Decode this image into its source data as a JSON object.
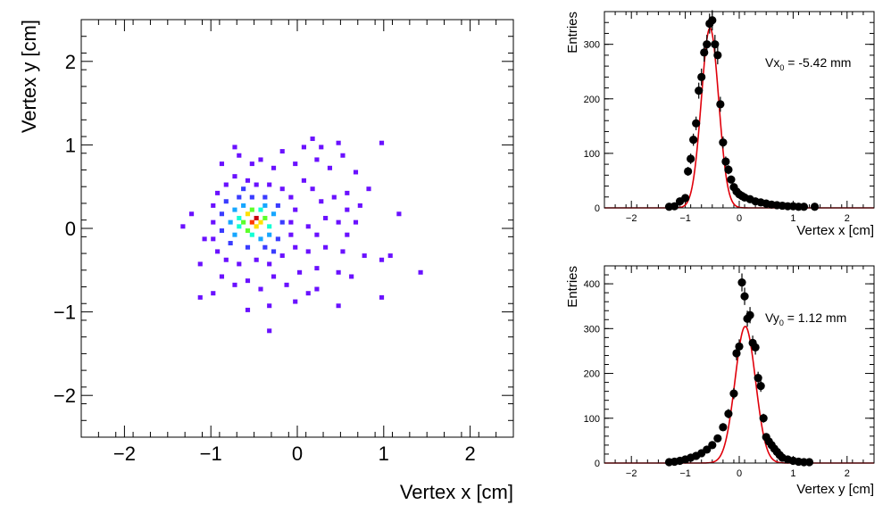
{
  "colors": {
    "frame": "#000000",
    "fit": "#e0000b",
    "points": "#000000",
    "palette": [
      "#6a11ff",
      "#3a3cff",
      "#16a6ff",
      "#12ffd4",
      "#5cff2a",
      "#ffe000",
      "#ff3a00",
      "#c8000e"
    ]
  },
  "chart_data": [
    {
      "type": "heatmap",
      "xlabel": "Vertex x [cm]",
      "ylabel": "Vertex y [cm]",
      "xlim": [
        -2.5,
        2.5
      ],
      "ylim": [
        -2.5,
        2.5
      ],
      "x_ticks": [
        "−2",
        "−1",
        "0",
        "1",
        "2"
      ],
      "y_ticks": [
        "−2",
        "−1",
        "0",
        "1",
        "2"
      ],
      "x_tick_values": [
        -2,
        -1,
        0,
        1,
        2
      ],
      "y_tick_values": [
        -2,
        -1,
        0,
        1,
        2
      ],
      "bin_width": 0.05,
      "bins": [
        [
          -0.5,
          0.1,
          8
        ],
        [
          -0.55,
          0.05,
          7
        ],
        [
          -0.45,
          0.05,
          6
        ],
        [
          -0.6,
          0.15,
          6
        ],
        [
          -0.5,
          0.0,
          6
        ],
        [
          -0.65,
          0.05,
          5
        ],
        [
          -0.55,
          0.2,
          5
        ],
        [
          -0.4,
          0.1,
          5
        ],
        [
          -0.6,
          -0.05,
          5
        ],
        [
          -0.7,
          0.1,
          4
        ],
        [
          -0.45,
          0.2,
          4
        ],
        [
          -0.7,
          0.0,
          4
        ],
        [
          -0.35,
          0.0,
          4
        ],
        [
          -0.55,
          -0.1,
          4
        ],
        [
          -0.75,
          0.2,
          3
        ],
        [
          -0.65,
          0.25,
          3
        ],
        [
          -0.4,
          0.25,
          3
        ],
        [
          -0.8,
          0.05,
          3
        ],
        [
          -0.3,
          0.15,
          3
        ],
        [
          -0.75,
          -0.1,
          3
        ],
        [
          -0.45,
          -0.15,
          3
        ],
        [
          -0.35,
          -0.1,
          3
        ],
        [
          -0.85,
          0.3,
          2
        ],
        [
          -0.7,
          0.35,
          2
        ],
        [
          -0.55,
          0.35,
          2
        ],
        [
          -0.4,
          0.35,
          2
        ],
        [
          -0.9,
          0.15,
          2
        ],
        [
          -0.25,
          0.25,
          2
        ],
        [
          -0.9,
          -0.05,
          2
        ],
        [
          -0.2,
          0.05,
          2
        ],
        [
          -0.8,
          -0.2,
          2
        ],
        [
          -0.6,
          -0.25,
          2
        ],
        [
          -0.4,
          -0.25,
          2
        ],
        [
          -0.25,
          -0.15,
          2
        ],
        [
          -0.65,
          0.45,
          2
        ],
        [
          -0.3,
          -0.3,
          2
        ],
        [
          -0.85,
          0.5,
          1
        ],
        [
          -0.75,
          0.6,
          1
        ],
        [
          -0.6,
          0.55,
          1
        ],
        [
          -0.5,
          0.5,
          1
        ],
        [
          -0.35,
          0.5,
          1
        ],
        [
          -0.2,
          0.45,
          1
        ],
        [
          -0.1,
          0.35,
          1
        ],
        [
          -0.05,
          0.2,
          1
        ],
        [
          -0.1,
          0.05,
          1
        ],
        [
          -0.95,
          0.4,
          1
        ],
        [
          -1.0,
          0.25,
          1
        ],
        [
          -1.0,
          0.05,
          1
        ],
        [
          -1.0,
          -0.15,
          1
        ],
        [
          -0.95,
          -0.3,
          1
        ],
        [
          -0.85,
          -0.4,
          1
        ],
        [
          -0.7,
          -0.45,
          1
        ],
        [
          -0.5,
          -0.4,
          1
        ],
        [
          -0.35,
          -0.45,
          1
        ],
        [
          -0.2,
          -0.35,
          1
        ],
        [
          -0.05,
          -0.25,
          1
        ],
        [
          -0.1,
          -0.1,
          1
        ],
        [
          -0.9,
          0.75,
          1
        ],
        [
          -0.75,
          0.95,
          1
        ],
        [
          -0.7,
          0.85,
          1
        ],
        [
          -0.45,
          0.8,
          1
        ],
        [
          -0.3,
          0.7,
          1
        ],
        [
          -0.2,
          0.9,
          1
        ],
        [
          -0.05,
          0.75,
          1
        ],
        [
          0.05,
          0.95,
          1
        ],
        [
          0.2,
          0.8,
          1
        ],
        [
          0.25,
          0.95,
          1
        ],
        [
          0.35,
          0.7,
          1
        ],
        [
          0.5,
          0.85,
          1
        ],
        [
          0.45,
          1.0,
          1
        ],
        [
          0.65,
          0.65,
          1
        ],
        [
          0.95,
          1.0,
          1
        ],
        [
          0.05,
          0.55,
          1
        ],
        [
          0.15,
          0.45,
          1
        ],
        [
          0.25,
          0.3,
          1
        ],
        [
          0.4,
          0.35,
          1
        ],
        [
          0.55,
          0.4,
          1
        ],
        [
          0.7,
          0.25,
          1
        ],
        [
          0.8,
          0.45,
          1
        ],
        [
          1.15,
          0.15,
          1
        ],
        [
          0.3,
          0.1,
          1
        ],
        [
          0.45,
          0.05,
          1
        ],
        [
          0.1,
          0.0,
          1
        ],
        [
          0.2,
          -0.1,
          1
        ],
        [
          0.55,
          -0.1,
          1
        ],
        [
          0.65,
          0.05,
          1
        ],
        [
          0.1,
          -0.3,
          1
        ],
        [
          0.3,
          -0.25,
          1
        ],
        [
          0.5,
          -0.3,
          1
        ],
        [
          0.75,
          -0.35,
          1
        ],
        [
          0.95,
          -0.4,
          1
        ],
        [
          1.05,
          -0.35,
          1
        ],
        [
          1.4,
          -0.55,
          1
        ],
        [
          0.2,
          -0.5,
          1
        ],
        [
          0.45,
          -0.55,
          1
        ],
        [
          0.6,
          -0.6,
          1
        ],
        [
          -0.9,
          -0.6,
          1
        ],
        [
          -0.75,
          -0.7,
          1
        ],
        [
          -0.6,
          -0.65,
          1
        ],
        [
          -0.45,
          -0.75,
          1
        ],
        [
          -0.3,
          -0.6,
          1
        ],
        [
          -0.15,
          -0.7,
          1
        ],
        [
          0.0,
          -0.55,
          1
        ],
        [
          0.1,
          -0.8,
          1
        ],
        [
          0.2,
          -0.75,
          1
        ],
        [
          -0.05,
          -0.9,
          1
        ],
        [
          0.45,
          -0.95,
          1
        ],
        [
          0.95,
          -0.85,
          1
        ],
        [
          -1.15,
          -0.85,
          1
        ],
        [
          -1.0,
          -0.8,
          1
        ],
        [
          -1.15,
          -0.45,
          1
        ],
        [
          -1.35,
          0.0,
          1
        ],
        [
          -1.25,
          0.15,
          1
        ],
        [
          -1.1,
          -0.15,
          1
        ],
        [
          -0.6,
          -1.0,
          1
        ],
        [
          -0.35,
          -0.95,
          1
        ],
        [
          -0.35,
          -1.25,
          1
        ],
        [
          0.15,
          1.05,
          1
        ],
        [
          -0.55,
          0.75,
          1
        ],
        [
          0.55,
          0.2,
          1
        ]
      ]
    },
    {
      "type": "scatter",
      "xlabel": "Vertex x [cm]",
      "ylabel": "Entries",
      "xlim": [
        -2.5,
        2.5
      ],
      "ylim": [
        0,
        360
      ],
      "x_ticks": [
        "−2",
        "−1",
        "0",
        "1",
        "2"
      ],
      "y_ticks": [
        "0",
        "100",
        "200",
        "300"
      ],
      "x_tick_values": [
        -2,
        -1,
        0,
        1,
        2
      ],
      "y_tick_values": [
        0,
        100,
        200,
        300
      ],
      "annotation_main": "Vx",
      "annotation_sub": "0",
      "annotation_value": " = -5.42 mm",
      "fit": {
        "type": "gaussian",
        "mean": -0.542,
        "sigma": 0.16,
        "amplitude": 330
      },
      "x": [
        -1.3,
        -1.2,
        -1.1,
        -1.0,
        -0.95,
        -0.9,
        -0.85,
        -0.8,
        -0.75,
        -0.7,
        -0.65,
        -0.6,
        -0.55,
        -0.5,
        -0.45,
        -0.4,
        -0.35,
        -0.3,
        -0.25,
        -0.2,
        -0.15,
        -0.1,
        -0.05,
        0.0,
        0.05,
        0.1,
        0.2,
        0.3,
        0.4,
        0.5,
        0.6,
        0.7,
        0.8,
        0.9,
        1.0,
        1.1,
        1.2,
        1.4
      ],
      "y": [
        2,
        3,
        12,
        18,
        67,
        90,
        125,
        155,
        215,
        240,
        285,
        300,
        338,
        344,
        300,
        280,
        190,
        120,
        85,
        70,
        52,
        38,
        30,
        25,
        22,
        19,
        16,
        12,
        10,
        8,
        6,
        5,
        4,
        3,
        3,
        2,
        2,
        2
      ]
    },
    {
      "type": "scatter",
      "xlabel": "Vertex y [cm]",
      "ylabel": "Entries",
      "xlim": [
        -2.5,
        2.5
      ],
      "ylim": [
        0,
        440
      ],
      "x_ticks": [
        "−2",
        "−1",
        "0",
        "1",
        "2"
      ],
      "y_ticks": [
        "0",
        "100",
        "200",
        "300",
        "400"
      ],
      "x_tick_values": [
        -2,
        -1,
        0,
        1,
        2
      ],
      "y_tick_values": [
        0,
        100,
        200,
        300,
        400
      ],
      "annotation_main": "Vy",
      "annotation_sub": "0",
      "annotation_value": " = 1.12 mm",
      "fit": {
        "type": "gaussian",
        "mean": 0.112,
        "sigma": 0.19,
        "amplitude": 305
      },
      "x": [
        -1.3,
        -1.2,
        -1.1,
        -1.0,
        -0.9,
        -0.8,
        -0.7,
        -0.6,
        -0.5,
        -0.4,
        -0.3,
        -0.2,
        -0.1,
        -0.05,
        0.0,
        0.05,
        0.1,
        0.15,
        0.2,
        0.25,
        0.3,
        0.35,
        0.4,
        0.45,
        0.5,
        0.55,
        0.6,
        0.65,
        0.7,
        0.75,
        0.8,
        0.9,
        1.0,
        1.1,
        1.2,
        1.3
      ],
      "y": [
        2,
        3,
        5,
        8,
        12,
        16,
        22,
        30,
        40,
        55,
        80,
        110,
        155,
        245,
        260,
        403,
        372,
        322,
        330,
        268,
        258,
        190,
        172,
        100,
        58,
        48,
        40,
        32,
        25,
        18,
        12,
        8,
        5,
        3,
        2,
        2
      ]
    }
  ]
}
